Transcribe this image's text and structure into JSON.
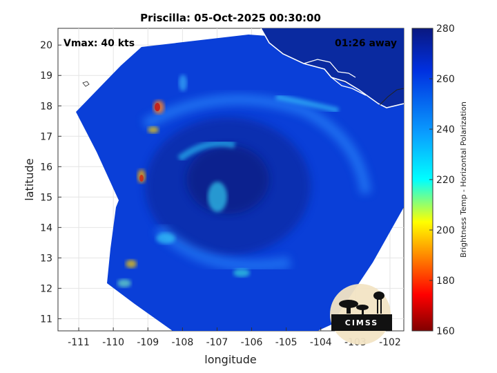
{
  "title": "Priscilla: 05-Oct-2025 00:30:00",
  "annotations": {
    "vmax": "Vmax: 40 kts",
    "time_away": "01:26 away"
  },
  "axes": {
    "xlabel": "longitude",
    "ylabel": "latitude",
    "xlim": [
      -111.6,
      -101.6
    ],
    "ylim": [
      10.6,
      20.55
    ],
    "xticks": [
      "-111",
      "-110",
      "-109",
      "-108",
      "-107",
      "-106",
      "-105",
      "-104",
      "-103",
      "-102"
    ],
    "yticks": [
      "11",
      "12",
      "13",
      "14",
      "15",
      "16",
      "17",
      "18",
      "19",
      "20"
    ]
  },
  "colorbar": {
    "label": "Brightness Temp - Horizontal Polarization",
    "min": 160,
    "max": 280,
    "ticks": [
      "160",
      "180",
      "200",
      "220",
      "240",
      "260",
      "280"
    ],
    "colormap": "jet"
  },
  "logo": {
    "text": "CIMSS"
  },
  "colors": {
    "background": "#ffffff",
    "ocean_fill": "#0a3fd8",
    "land_fill": "#0a2aa0",
    "coastline": "#ffffff"
  }
}
